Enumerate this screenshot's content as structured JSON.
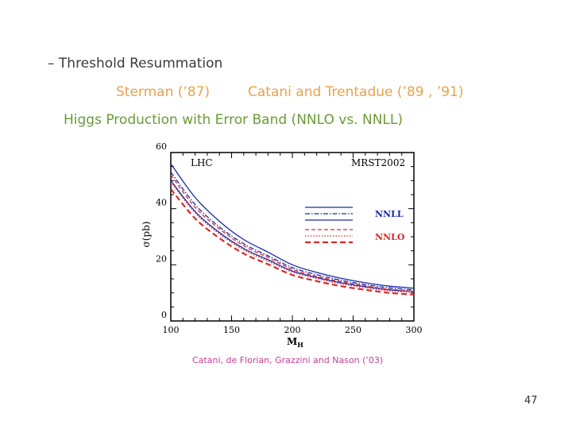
{
  "slide": {
    "bullet": "– Threshold Resummation",
    "refs_a": "Sterman (’87)",
    "refs_b": "Catani and Trentadue (’89 , ’91)",
    "higgs_title": "Higgs Production with Error Band (NNLO vs. NNLL)",
    "credit": "Catani, de Florian, Grazzini and Nason (’03)",
    "page_number": "47"
  },
  "colors": {
    "bullet": "#3a3a3a",
    "refs": "#e8a24a",
    "higgs": "#6b9a3a",
    "credit": "#c0409a",
    "nnll": "#1a2aa8",
    "nnlo": "#d42a2a"
  },
  "chart_data": {
    "type": "line",
    "xlabel": "M_H",
    "ylabel": "σ(pb)",
    "xlim": [
      100,
      300
    ],
    "ylim": [
      0,
      60
    ],
    "x_ticks": [
      "100",
      "150",
      "200",
      "250",
      "300"
    ],
    "y_ticks": [
      "0",
      "20",
      "40",
      "60"
    ],
    "annotations": [
      "LHC",
      "MRST2002"
    ],
    "legend": [
      {
        "label": "NNLL",
        "color": "#1a2aa8"
      },
      {
        "label": "NNLO",
        "color": "#d42a2a"
      }
    ],
    "x": [
      100,
      120,
      140,
      160,
      180,
      200,
      220,
      240,
      260,
      280,
      300
    ],
    "series": [
      {
        "group": "NNLL",
        "style": "solid",
        "color": "#1a2aa8",
        "values": [
          56,
          44,
          35.5,
          29,
          24.5,
          20,
          17.3,
          15.2,
          13.6,
          12.4,
          11.7
        ]
      },
      {
        "group": "NNLL",
        "style": "dashdot",
        "color": "#1a2aa8",
        "values": [
          53,
          41.5,
          33.5,
          27.5,
          23.2,
          19,
          16.5,
          14.5,
          13,
          11.8,
          11.1
        ]
      },
      {
        "group": "NNLL",
        "style": "solid",
        "color": "#1a2aa8",
        "values": [
          50,
          39,
          31.5,
          25.8,
          21.8,
          17.8,
          15.5,
          13.6,
          12.2,
          11.1,
          10.5
        ]
      },
      {
        "group": "NNLO",
        "style": "dashed",
        "color": "#d42a2a",
        "values": [
          52,
          40.5,
          32.8,
          26.8,
          22.6,
          18.4,
          15.9,
          14,
          12.5,
          11.3,
          10.6
        ]
      },
      {
        "group": "NNLO",
        "style": "dotted",
        "color": "#d42a2a",
        "values": [
          49.5,
          38.5,
          31,
          25.3,
          21.3,
          17.4,
          15.1,
          13.2,
          11.8,
          10.7,
          10.1
        ]
      },
      {
        "group": "NNLO",
        "style": "bolddashed",
        "color": "#d42a2a",
        "values": [
          47,
          36.5,
          29.5,
          24,
          20.2,
          16.4,
          14.2,
          12.4,
          11.1,
          10,
          9.4
        ]
      }
    ]
  }
}
